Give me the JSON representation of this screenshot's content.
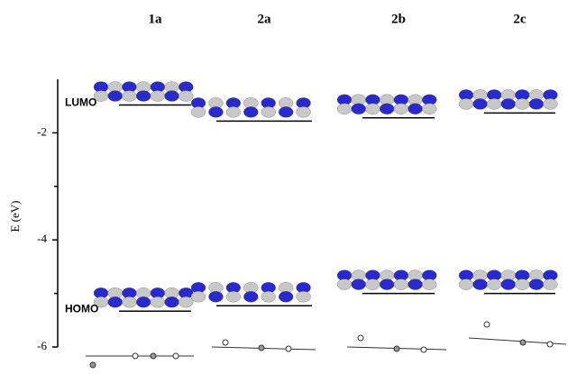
{
  "chart_data": {
    "type": "energy-level",
    "ylabel": "E (eV)",
    "categories": [
      "1a",
      "2a",
      "2b",
      "2c"
    ],
    "series": [
      {
        "name": "LUMO",
        "color": "#000000",
        "values": [
          -1.48,
          -1.78,
          -1.72,
          -1.63
        ]
      },
      {
        "name": "HOMO",
        "color": "#000000",
        "values": [
          -5.33,
          -5.23,
          -5.0,
          -5.0
        ]
      }
    ],
    "ylim": [
      -6,
      -1
    ],
    "yticks": [
      -6,
      -4,
      -2
    ],
    "minor_yticks": [
      -5,
      -3
    ]
  }
}
